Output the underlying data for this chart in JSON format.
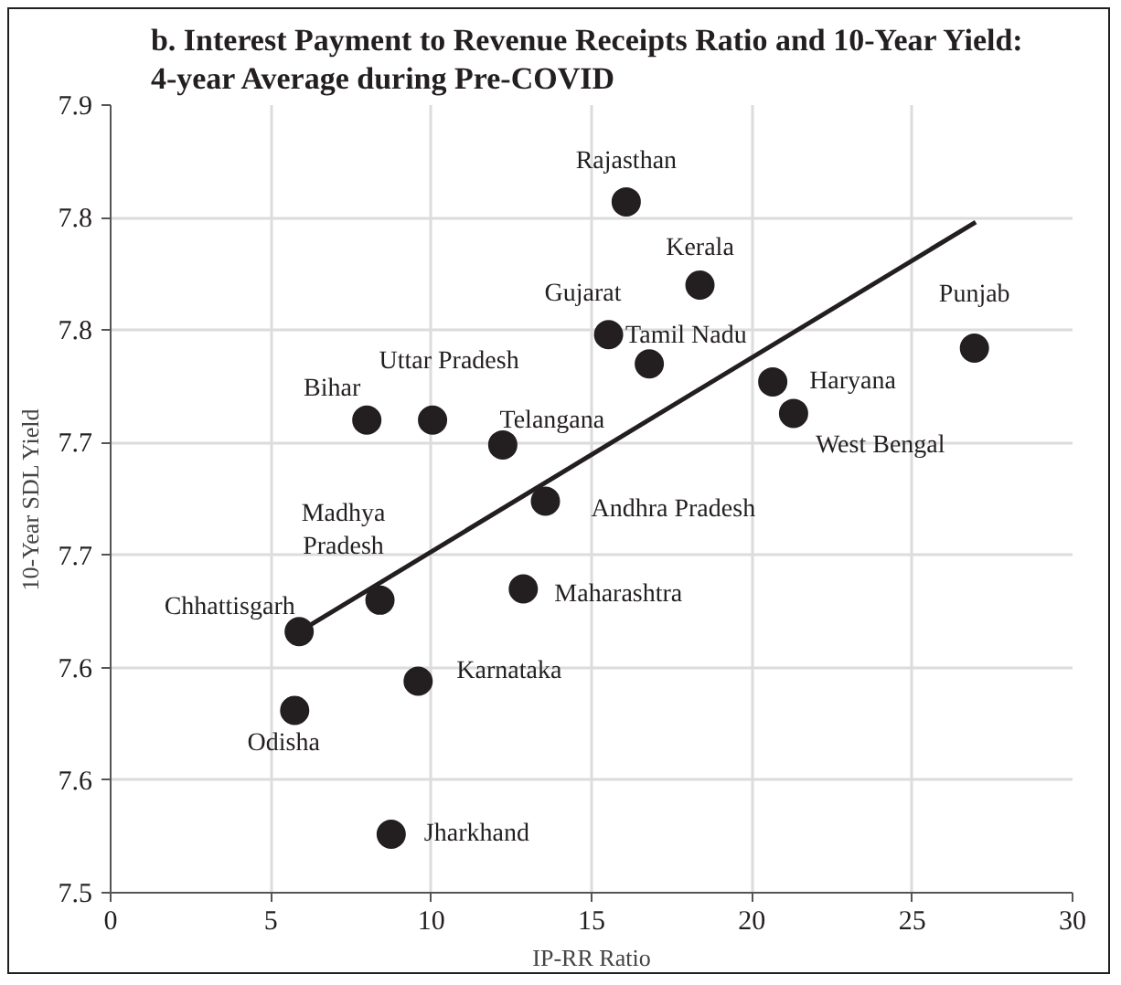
{
  "chart_data": {
    "type": "scatter",
    "title": "b. Interest Payment to Revenue Receipts  Ratio and 10-Year Yield:\n4-year Average during Pre-COVID",
    "xlabel": "IP-RR Ratio",
    "ylabel": "10-Year SDL Yield",
    "x": [
      16.08,
      18.38,
      15.53,
      16.8,
      20.65,
      21.3,
      26.94,
      7.99,
      10.04,
      12.23,
      13.56,
      8.4,
      5.88,
      12.87,
      9.59,
      5.74,
      8.75
    ],
    "series": [
      {
        "color": "#231f20",
        "marker": "circle",
        "values": [
          7.807,
          7.77,
          7.748,
          7.735,
          7.727,
          7.713,
          7.742,
          7.71,
          7.71,
          7.699,
          7.674,
          7.63,
          7.616,
          7.635,
          7.594,
          7.581,
          7.526
        ]
      },
      {
        "type": "line",
        "color": "#231f20",
        "x": [
          5.88,
          26.98
        ],
        "values": [
          7.616,
          7.798
        ],
        "marker": "none"
      }
    ],
    "annotations": [
      {
        "text": "Rajasthan",
        "x": 16.08,
        "y": 7.807
      },
      {
        "text": "Kerala",
        "x": 18.38,
        "y": 7.77
      },
      {
        "text": "Gujarat",
        "x": 15.53,
        "y": 7.748
      },
      {
        "text": "Tamil Nadu",
        "x": 16.8,
        "y": 7.735
      },
      {
        "text": "Haryana",
        "x": 20.65,
        "y": 7.727
      },
      {
        "text": "West Bengal",
        "x": 21.3,
        "y": 7.713
      },
      {
        "text": "Punjab",
        "x": 26.94,
        "y": 7.742
      },
      {
        "text": "Bihar",
        "x": 7.99,
        "y": 7.71
      },
      {
        "text": "Uttar Pradesh",
        "x": 10.04,
        "y": 7.71
      },
      {
        "text": "Telangana",
        "x": 12.23,
        "y": 7.699
      },
      {
        "text": "Andhra Pradesh",
        "x": 13.56,
        "y": 7.674
      },
      {
        "text": "Madhya Pradesh",
        "x": 8.4,
        "y": 7.63
      },
      {
        "text": "Chhattisgarh",
        "x": 5.88,
        "y": 7.616
      },
      {
        "text": "Maharashtra",
        "x": 12.87,
        "y": 7.635
      },
      {
        "text": "Karnataka",
        "x": 9.59,
        "y": 7.594
      },
      {
        "text": "Odisha",
        "x": 5.74,
        "y": 7.581
      },
      {
        "text": "Jharkhand",
        "x": 8.75,
        "y": 7.526
      }
    ],
    "xlim": [
      0,
      30
    ],
    "xticks": [
      0,
      5,
      10,
      15,
      20,
      25,
      30
    ],
    "ylim": [
      7.5,
      7.85
    ],
    "yticks": [
      7.5,
      {
        "value": 7.55,
        "label": "7.6"
      },
      7.6,
      {
        "value": 7.65,
        "label": "7.7"
      },
      7.7,
      {
        "value": 7.75,
        "label": "7.8"
      },
      7.8,
      {
        "value": 7.85,
        "label": "7.9"
      }
    ],
    "grid": true,
    "line_style": "solid"
  }
}
